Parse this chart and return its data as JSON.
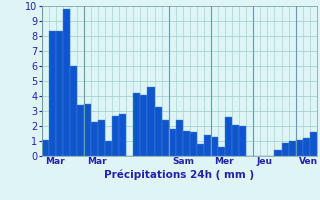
{
  "values": [
    1.1,
    8.3,
    8.3,
    9.8,
    6.0,
    3.4,
    3.5,
    2.3,
    2.4,
    1.0,
    2.7,
    2.8,
    0.0,
    4.2,
    4.1,
    4.6,
    3.3,
    2.4,
    1.8,
    2.4,
    1.7,
    1.6,
    0.8,
    1.4,
    1.3,
    0.6,
    2.6,
    2.1,
    2.0,
    0.0,
    0.0,
    0.0,
    0.0,
    0.4,
    0.9,
    1.0,
    1.1,
    1.2,
    1.6
  ],
  "day_sep_positions": [
    0,
    6,
    18,
    24,
    30,
    36
  ],
  "day_labels": [
    "Mar",
    "Mar",
    "Sam",
    "Mer",
    "Jeu",
    "Ven"
  ],
  "xlabel": "Précipitations 24h ( mm )",
  "ylim": [
    0,
    10
  ],
  "yticks": [
    0,
    1,
    2,
    3,
    4,
    5,
    6,
    7,
    8,
    9,
    10
  ],
  "bar_color": "#1155cc",
  "bar_edge_color": "#4488dd",
  "background_color": "#dff4f4",
  "grid_color": "#99cccc",
  "xlabel_color": "#2222aa",
  "tick_color": "#2222aa",
  "n_bars": 39
}
